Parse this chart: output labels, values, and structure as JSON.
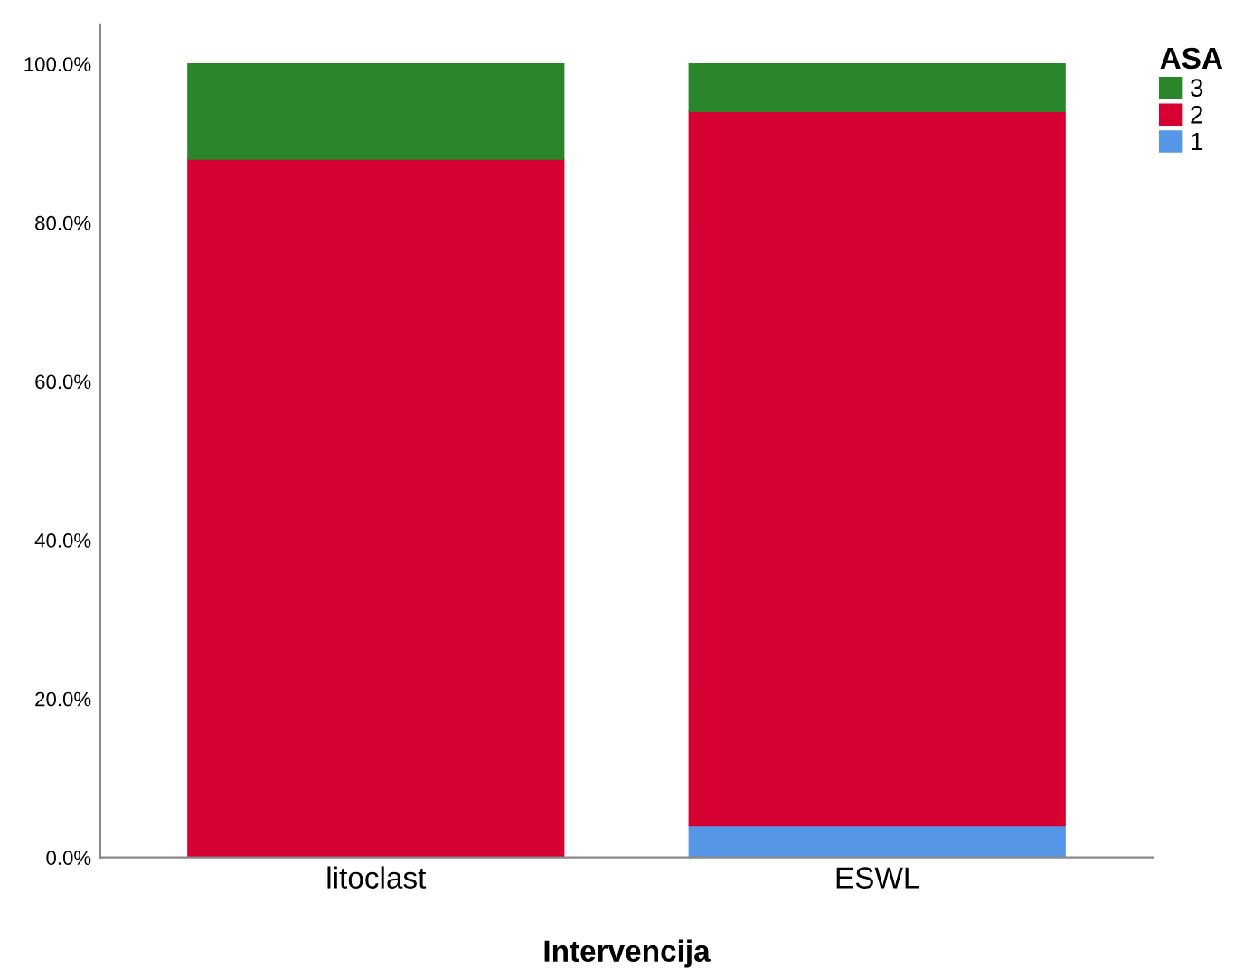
{
  "chart_data": {
    "type": "bar",
    "stacked": true,
    "xlabel": "Intervencija",
    "legend_title": "ASA",
    "legend": "top right",
    "categories": [
      "litoclast",
      "ESWL"
    ],
    "series": [
      {
        "name": "1",
        "color": "#5596e6",
        "values": [
          0,
          4.0
        ]
      },
      {
        "name": "2",
        "color": "#d60032",
        "values": [
          88.0,
          90.0
        ]
      },
      {
        "name": "3",
        "color": "#2a862a",
        "values": [
          12.0,
          6.0
        ]
      }
    ],
    "ylim": [
      0,
      105
    ],
    "yticks": [
      {
        "value": 0,
        "label": "0.0%"
      },
      {
        "value": 20,
        "label": "20.0%"
      },
      {
        "value": 40,
        "label": "40.0%"
      },
      {
        "value": 60,
        "label": "60.0%"
      },
      {
        "value": 80,
        "label": "80.0%"
      },
      {
        "value": 100,
        "label": "100.0%"
      }
    ],
    "grid": false
  }
}
